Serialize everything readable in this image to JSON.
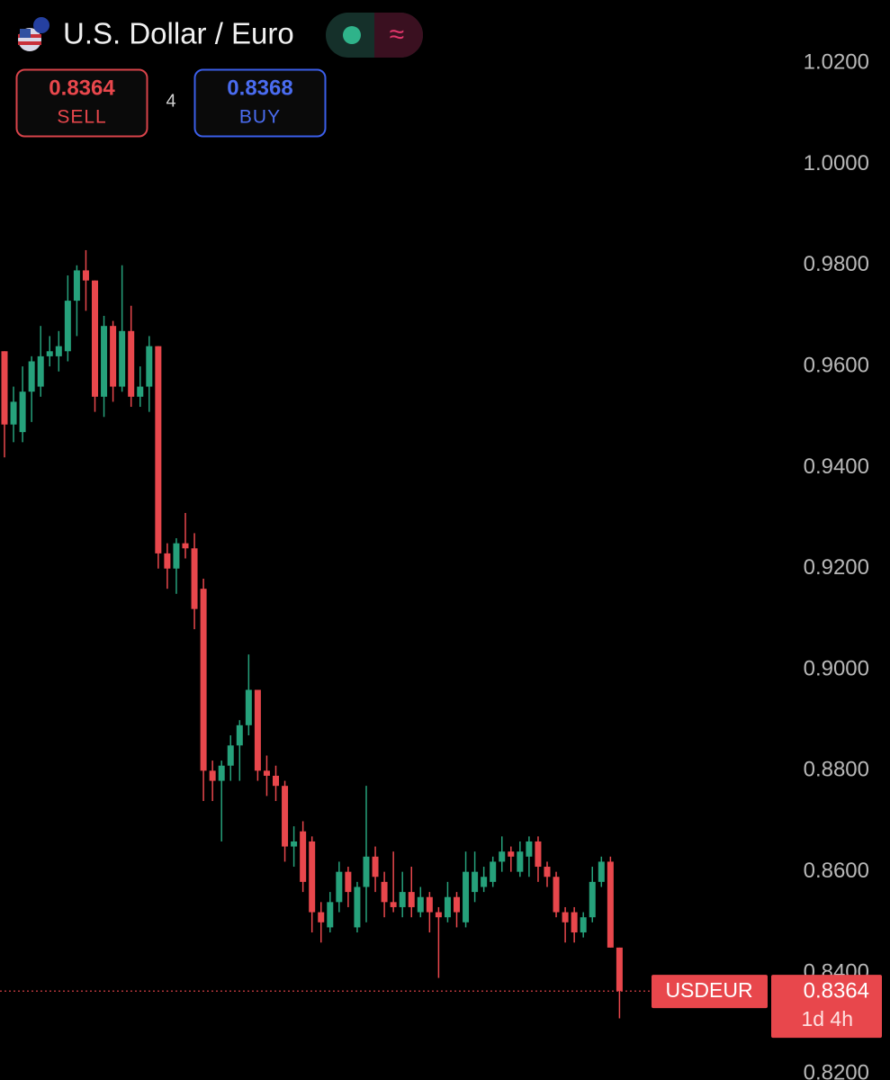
{
  "toolbar": {
    "sell": {
      "price": 0.8364,
      "label": "SELL"
    },
    "spread": 4,
    "buy": {
      "price": 0.8368,
      "label": "BUY"
    }
  },
  "chart_data": {
    "type": "candlestick",
    "title": "U.S. Dollar / Euro",
    "up_color": "#26a17b",
    "down_color": "#e8474c",
    "ylim": [
      0.8188,
      1.0325
    ],
    "yticks": [
      {
        "value": 1.02,
        "label": "1.0200"
      },
      {
        "value": 1.0,
        "label": "1.0000"
      },
      {
        "value": 0.98,
        "label": "0.9800"
      },
      {
        "value": 0.96,
        "label": "0.9600"
      },
      {
        "value": 0.94,
        "label": "0.9400"
      },
      {
        "value": 0.92,
        "label": "0.9200"
      },
      {
        "value": 0.9,
        "label": "0.9000"
      },
      {
        "value": 0.88,
        "label": "0.8800"
      },
      {
        "value": 0.86,
        "label": "0.8600"
      },
      {
        "value": 0.84,
        "label": "0.8400"
      },
      {
        "value": 0.82,
        "label": "0.8200"
      }
    ],
    "open": [
      0.963,
      0.9485,
      0.947,
      0.955,
      0.956,
      0.962,
      0.962,
      0.963,
      0.973,
      0.979,
      0.977,
      0.954,
      0.968,
      0.956,
      0.967,
      0.954,
      0.956,
      0.964,
      0.923,
      0.92,
      0.925,
      0.924,
      0.916,
      0.88,
      0.878,
      0.881,
      0.885,
      0.889,
      0.896,
      0.88,
      0.879,
      0.877,
      0.865,
      0.868,
      0.866,
      0.852,
      0.849,
      0.854,
      0.86,
      0.849,
      0.857,
      0.863,
      0.858,
      0.854,
      0.853,
      0.856,
      0.852,
      0.855,
      0.852,
      0.851,
      0.855,
      0.85,
      0.856,
      0.857,
      0.858,
      0.862,
      0.864,
      0.86,
      0.863,
      0.866,
      0.861,
      0.859,
      0.852,
      0.852,
      0.848,
      0.851,
      0.858,
      0.862,
      0.845
    ],
    "high": [
      0.963,
      0.956,
      0.96,
      0.962,
      0.968,
      0.966,
      0.967,
      0.978,
      0.98,
      0.983,
      0.977,
      0.97,
      0.969,
      0.98,
      0.972,
      0.96,
      0.966,
      0.964,
      0.925,
      0.926,
      0.931,
      0.927,
      0.918,
      0.882,
      0.882,
      0.887,
      0.89,
      0.903,
      0.896,
      0.883,
      0.881,
      0.878,
      0.869,
      0.87,
      0.867,
      0.854,
      0.856,
      0.862,
      0.861,
      0.858,
      0.877,
      0.865,
      0.86,
      0.864,
      0.86,
      0.861,
      0.857,
      0.856,
      0.853,
      0.858,
      0.856,
      0.864,
      0.864,
      0.861,
      0.863,
      0.867,
      0.865,
      0.866,
      0.867,
      0.867,
      0.862,
      0.86,
      0.853,
      0.853,
      0.852,
      0.861,
      0.863,
      0.863,
      0.845
    ],
    "low": [
      0.942,
      0.945,
      0.945,
      0.949,
      0.954,
      0.96,
      0.959,
      0.961,
      0.966,
      0.971,
      0.951,
      0.95,
      0.953,
      0.955,
      0.952,
      0.952,
      0.951,
      0.92,
      0.916,
      0.915,
      0.922,
      0.908,
      0.874,
      0.874,
      0.866,
      0.878,
      0.878,
      0.887,
      0.878,
      0.875,
      0.874,
      0.862,
      0.861,
      0.856,
      0.848,
      0.846,
      0.848,
      0.852,
      0.853,
      0.848,
      0.85,
      0.856,
      0.851,
      0.852,
      0.851,
      0.851,
      0.851,
      0.848,
      0.839,
      0.85,
      0.849,
      0.849,
      0.854,
      0.856,
      0.857,
      0.86,
      0.86,
      0.859,
      0.859,
      0.858,
      0.857,
      0.851,
      0.846,
      0.846,
      0.847,
      0.85,
      0.857,
      0.845,
      0.831
    ],
    "close": [
      0.9485,
      0.953,
      0.955,
      0.961,
      0.962,
      0.963,
      0.964,
      0.973,
      0.979,
      0.977,
      0.954,
      0.968,
      0.956,
      0.967,
      0.954,
      0.956,
      0.964,
      0.923,
      0.92,
      0.925,
      0.924,
      0.912,
      0.88,
      0.878,
      0.881,
      0.885,
      0.889,
      0.896,
      0.88,
      0.879,
      0.877,
      0.865,
      0.866,
      0.858,
      0.852,
      0.85,
      0.854,
      0.86,
      0.856,
      0.857,
      0.863,
      0.859,
      0.854,
      0.853,
      0.856,
      0.853,
      0.855,
      0.852,
      0.851,
      0.855,
      0.852,
      0.86,
      0.86,
      0.859,
      0.862,
      0.864,
      0.863,
      0.864,
      0.866,
      0.861,
      0.859,
      0.852,
      0.85,
      0.848,
      0.851,
      0.858,
      0.862,
      0.845,
      0.8364
    ],
    "last_price_tag": {
      "symbol": "USDEUR",
      "value": 0.8364,
      "countdown": "1d 4h"
    }
  }
}
